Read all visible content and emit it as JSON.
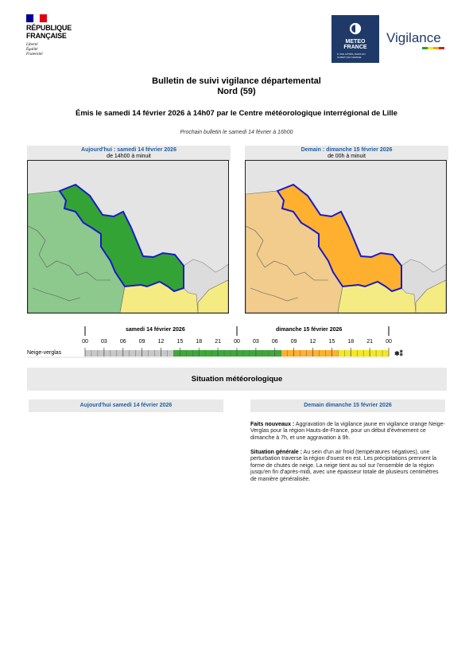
{
  "republic": {
    "name_line1": "RÉPUBLIQUE",
    "name_line2": "FRANÇAISE",
    "motto": [
      "Liberté",
      "Égalité",
      "Fraternité"
    ],
    "flag_colors": [
      "#000091",
      "#ffffff",
      "#e1000f"
    ]
  },
  "meteo": {
    "brand_line1": "METEO",
    "brand_line2": "FRANCE",
    "tagline": "À VOS CÔTÉS, DANS UN CLIMAT QUI CHANGE",
    "vigilance": "Vigilance",
    "box_color": "#1f3a68",
    "stripe_colors": [
      "#2a9d3a",
      "#f6e71d",
      "#f3a418",
      "#d71e1e"
    ]
  },
  "bulletin": {
    "title": "Bulletin de suivi vigilance départemental",
    "department": "Nord (59)",
    "issued": "Émis le samedi 14 février 2026 à 14h07 par le Centre météorologique interrégional de Lille",
    "next": "Prochain bulletin le samedi 14 février à 16h00"
  },
  "maps": [
    {
      "date": "Aujourd'hui : samedi 14 février 2026",
      "range": "de 14h00 à minuit",
      "level": "vert",
      "fill": "#34a336",
      "surround": "#8dc98d",
      "south": "#f4ec82"
    },
    {
      "date": "Demain : dimanche 15 février 2026",
      "range": "de 00h à minuit",
      "level": "orange",
      "fill": "#ffb02e",
      "surround": "#f2cc8c",
      "south": "#f4ec82"
    }
  ],
  "timeline": {
    "day1": "samedi 14 février 2026",
    "day2": "dimanche 15 février 2026",
    "hours": [
      "00",
      "03",
      "06",
      "09",
      "12",
      "15",
      "18",
      "21",
      "00",
      "03",
      "06",
      "09",
      "12",
      "15",
      "18",
      "21",
      "00"
    ],
    "phenomenon": "Neige-verglas",
    "icon": "❄⁑",
    "segments": [
      {
        "from_hour": 0,
        "to_hour": 14,
        "color": "#c8c8c8"
      },
      {
        "from_hour": 14,
        "to_hour": 31,
        "color": "#3ea83a"
      },
      {
        "from_hour": 31,
        "to_hour": 40,
        "color": "#ffb02e"
      },
      {
        "from_hour": 40,
        "to_hour": 48,
        "color": "#f4e822"
      }
    ]
  },
  "situation": {
    "title": "Situation météorologique",
    "today_head": "Aujourd'hui samedi 14 février 2026",
    "tomorrow_head": "Demain dimanche 15 février 2026",
    "news_label": "Faits nouveaux :",
    "news_text": "Aggravation de la vigilance jaune en vigilance orange Neige-Verglas pour la région Hauts-de-France, pour un début d'événement ce dimanche à 7h, et une aggravation à 9h.",
    "general_label": "Situation générale :",
    "general_text": "Au sein d'un air froid (températures négatives), une perturbation traverse la région d'ouest en est. Les précipitations prennent la forme de chutes de neige. La neige tient au sol sur l'ensemble de la région jusqu'en fin d'après-midi, avec une épaisseur totale de plusieurs centimètres de manière généralisée."
  }
}
